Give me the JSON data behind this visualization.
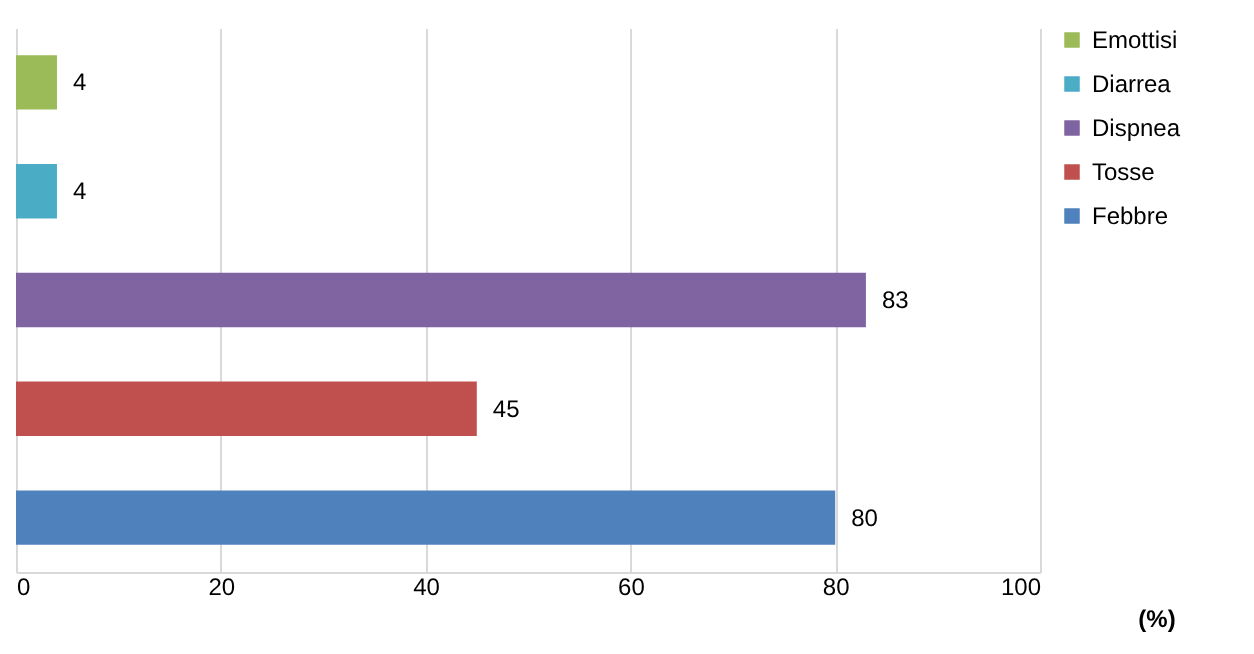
{
  "chart_data": {
    "type": "bar",
    "orientation": "horizontal",
    "xlabel": "(%)",
    "categories": [
      null,
      null,
      null,
      null,
      null
    ],
    "series": [
      {
        "name": "Emottisi",
        "color": "#9bbb59",
        "values": [
          4,
          null,
          null,
          null,
          null
        ]
      },
      {
        "name": "Diarrea",
        "color": "#4bacc6",
        "values": [
          null,
          4,
          null,
          null,
          null
        ]
      },
      {
        "name": "Dispnea",
        "color": "#8064a2",
        "values": [
          null,
          null,
          83,
          null,
          null
        ]
      },
      {
        "name": "Tosse",
        "color": "#c0504d",
        "values": [
          null,
          null,
          null,
          45,
          null
        ]
      },
      {
        "name": "Febbre",
        "color": "#4f81bd",
        "values": [
          null,
          null,
          null,
          null,
          80
        ]
      }
    ],
    "xlim": [
      0,
      100
    ],
    "xticks": [
      0,
      20,
      40,
      60,
      80,
      100
    ],
    "grid": "x",
    "legend": "right",
    "tick_labels": "x",
    "data_labels": true
  }
}
